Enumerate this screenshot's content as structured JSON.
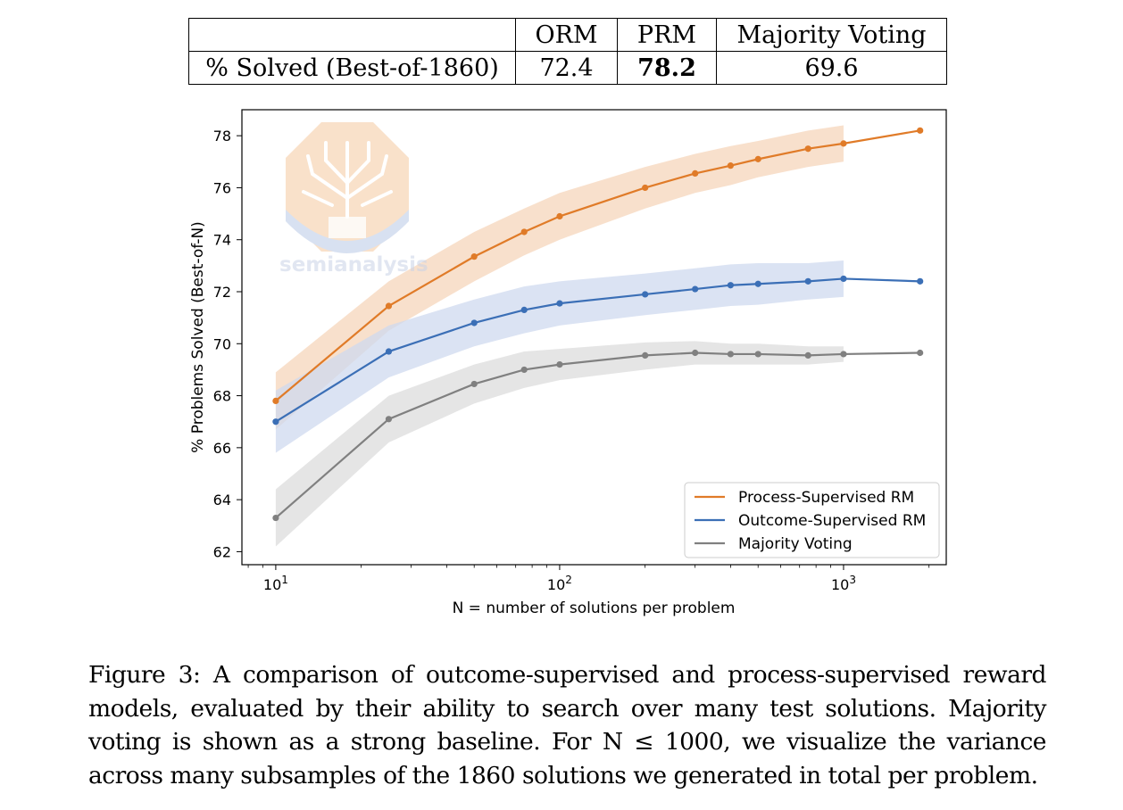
{
  "table": {
    "headers": [
      "",
      "ORM",
      "PRM",
      "Majority Voting"
    ],
    "row_label": "% Solved (Best-of-1860)",
    "values": [
      "72.4",
      "78.2",
      "69.6"
    ],
    "bold_index": 1
  },
  "watermark": {
    "text": "semianalysis"
  },
  "caption": {
    "text": "Figure 3: A comparison of outcome-supervised and process-supervised reward models, evaluated by their ability to search over many test solutions. Majority voting is shown as a strong baseline. For N ≤ 1000, we visualize the variance across many subsamples of the 1860 solutions we generated in total per problem."
  },
  "chart_data": {
    "type": "line",
    "xscale": "log",
    "xlabel": "N = number of solutions per problem",
    "ylabel": "% Problems Solved (Best-of-N)",
    "xlim": [
      7.6,
      2300
    ],
    "ylim": [
      61.5,
      79
    ],
    "y_ticks": [
      62,
      64,
      66,
      68,
      70,
      72,
      74,
      76,
      78
    ],
    "x_ticks": [
      10,
      100,
      1000
    ],
    "x_tick_labels": [
      {
        "base": "10",
        "exp": "1"
      },
      {
        "base": "10",
        "exp": "2"
      },
      {
        "base": "10",
        "exp": "3"
      }
    ],
    "x": [
      10,
      25,
      50,
      75,
      100,
      200,
      300,
      400,
      500,
      750,
      1000,
      1860
    ],
    "legend_position": "lower-right",
    "series": [
      {
        "name": "Process-Supervised RM",
        "color": "#e07b28",
        "band_color": "#f6d5bb",
        "values": [
          67.8,
          71.45,
          73.35,
          74.3,
          74.9,
          76.0,
          76.55,
          76.85,
          77.1,
          77.5,
          77.7,
          78.2
        ],
        "lower": [
          66.7,
          70.5,
          72.4,
          73.4,
          74.0,
          75.2,
          75.8,
          76.1,
          76.4,
          76.8,
          77.0,
          null
        ],
        "upper": [
          68.9,
          72.4,
          74.3,
          75.2,
          75.8,
          76.8,
          77.3,
          77.6,
          77.8,
          78.2,
          78.4,
          null
        ]
      },
      {
        "name": "Outcome-Supervised RM",
        "color": "#3b6fb6",
        "band_color": "#cfdaef",
        "values": [
          67.0,
          69.7,
          70.8,
          71.3,
          71.55,
          71.9,
          72.1,
          72.25,
          72.3,
          72.4,
          72.5,
          72.4
        ],
        "lower": [
          65.8,
          68.7,
          69.9,
          70.4,
          70.7,
          71.1,
          71.3,
          71.45,
          71.5,
          71.7,
          71.8,
          null
        ],
        "upper": [
          68.2,
          70.7,
          71.7,
          72.2,
          72.4,
          72.7,
          72.9,
          73.05,
          73.1,
          73.1,
          73.2,
          null
        ]
      },
      {
        "name": "Majority Voting",
        "color": "#808080",
        "band_color": "#dcdcdc",
        "values": [
          63.3,
          67.1,
          68.45,
          69.0,
          69.2,
          69.55,
          69.65,
          69.6,
          69.6,
          69.55,
          69.6,
          69.65
        ],
        "lower": [
          62.2,
          66.2,
          67.7,
          68.3,
          68.6,
          69.0,
          69.2,
          69.2,
          69.2,
          69.2,
          69.3,
          null
        ],
        "upper": [
          64.4,
          68.0,
          69.2,
          69.7,
          69.8,
          70.05,
          70.1,
          70.0,
          70.0,
          69.9,
          69.9,
          null
        ]
      }
    ]
  }
}
